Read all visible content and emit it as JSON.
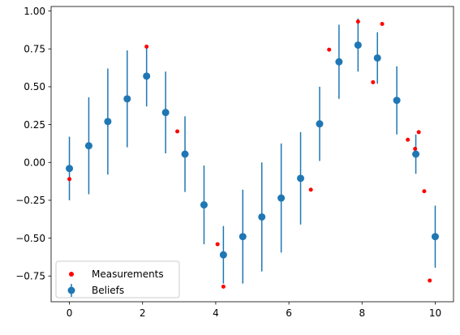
{
  "chart_data": {
    "type": "scatter",
    "xlim": [
      -0.5,
      10.5
    ],
    "ylim": [
      -0.92,
      1.03
    ],
    "x_ticks": [
      0,
      2,
      4,
      6,
      8,
      10
    ],
    "y_ticks": [
      -0.75,
      -0.5,
      -0.25,
      0.0,
      0.25,
      0.5,
      0.75,
      1.0
    ],
    "x_tick_labels": [
      "0",
      "2",
      "4",
      "6",
      "8",
      "10"
    ],
    "y_tick_labels": [
      "−0.75",
      "−0.50",
      "−0.25",
      "0.00",
      "0.25",
      "0.50",
      "0.75",
      "1.00"
    ],
    "grid": false,
    "legend_position": "lower-left",
    "series": [
      {
        "name": "Beliefs",
        "kind": "errorbar",
        "color": "#1f77b4",
        "points": [
          {
            "x": 0.0,
            "y": -0.04,
            "err": 0.21
          },
          {
            "x": 0.53,
            "y": 0.11,
            "err": 0.32
          },
          {
            "x": 1.05,
            "y": 0.27,
            "err": 0.35
          },
          {
            "x": 1.58,
            "y": 0.42,
            "err": 0.32
          },
          {
            "x": 2.11,
            "y": 0.57,
            "err": 0.2
          },
          {
            "x": 2.63,
            "y": 0.33,
            "err": 0.27
          },
          {
            "x": 3.16,
            "y": 0.055,
            "err": 0.25
          },
          {
            "x": 3.68,
            "y": -0.28,
            "err": 0.26
          },
          {
            "x": 4.21,
            "y": -0.61,
            "err": 0.19
          },
          {
            "x": 4.74,
            "y": -0.49,
            "err": 0.31
          },
          {
            "x": 5.26,
            "y": -0.36,
            "err": 0.36
          },
          {
            "x": 5.79,
            "y": -0.235,
            "err": 0.36
          },
          {
            "x": 6.32,
            "y": -0.105,
            "err": 0.305
          },
          {
            "x": 6.84,
            "y": 0.255,
            "err": 0.245
          },
          {
            "x": 7.37,
            "y": 0.665,
            "err": 0.245
          },
          {
            "x": 7.89,
            "y": 0.775,
            "err": 0.175
          },
          {
            "x": 8.42,
            "y": 0.69,
            "err": 0.17
          },
          {
            "x": 8.95,
            "y": 0.41,
            "err": 0.225
          },
          {
            "x": 9.47,
            "y": 0.055,
            "err": 0.13
          },
          {
            "x": 10.0,
            "y": -0.49,
            "err": 0.205
          }
        ]
      },
      {
        "name": "Measurements",
        "kind": "scatter",
        "color": "#ff0000",
        "points": [
          {
            "x": 0.0,
            "y": -0.11
          },
          {
            "x": 2.11,
            "y": 0.765
          },
          {
            "x": 2.95,
            "y": 0.205
          },
          {
            "x": 4.05,
            "y": -0.54
          },
          {
            "x": 4.21,
            "y": -0.82
          },
          {
            "x": 6.6,
            "y": -0.18
          },
          {
            "x": 7.1,
            "y": 0.745
          },
          {
            "x": 7.89,
            "y": 0.93
          },
          {
            "x": 8.3,
            "y": 0.53
          },
          {
            "x": 8.55,
            "y": 0.915
          },
          {
            "x": 9.25,
            "y": 0.15
          },
          {
            "x": 9.45,
            "y": 0.09
          },
          {
            "x": 9.55,
            "y": 0.2
          },
          {
            "x": 9.7,
            "y": -0.19
          },
          {
            "x": 9.85,
            "y": -0.78
          }
        ]
      }
    ]
  }
}
